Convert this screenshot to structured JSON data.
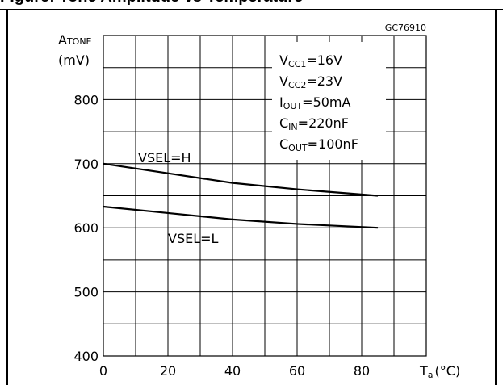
{
  "page": {
    "title": "Figure: Tone Amplitude vs Temperature",
    "figure_code": "GC76910"
  },
  "chart_data": {
    "type": "line",
    "title": "",
    "ylabel_main": "A",
    "ylabel_sub": "TONE",
    "yunit": "(mV)",
    "xlabel_main": "T",
    "xlabel_sub": "a",
    "xunit": "(°C)",
    "xlim": [
      0,
      100
    ],
    "ylim": [
      400,
      900
    ],
    "x_ticks": [
      0,
      20,
      40,
      60,
      80
    ],
    "y_ticks": [
      400,
      500,
      600,
      700,
      800
    ],
    "grid": true,
    "series": [
      {
        "name": "VSEL=H",
        "x": [
          0,
          20,
          40,
          60,
          85
        ],
        "y": [
          700,
          685,
          670,
          660,
          650
        ]
      },
      {
        "name": "VSEL=L",
        "x": [
          0,
          20,
          40,
          60,
          85
        ],
        "y": [
          633,
          623,
          613,
          606,
          600
        ]
      }
    ],
    "conditions": [
      {
        "main": "V",
        "sub": "CC1",
        "rest": "=16V"
      },
      {
        "main": "V",
        "sub": "CC2",
        "rest": "=23V"
      },
      {
        "main": "I",
        "sub": "OUT",
        "rest": "=50mA"
      },
      {
        "main": "C",
        "sub": "IN",
        "rest": "=220nF"
      },
      {
        "main": "C",
        "sub": "OUT",
        "rest": "=100nF"
      }
    ],
    "colors": {
      "line": "#000000",
      "grid": "#000000"
    }
  }
}
